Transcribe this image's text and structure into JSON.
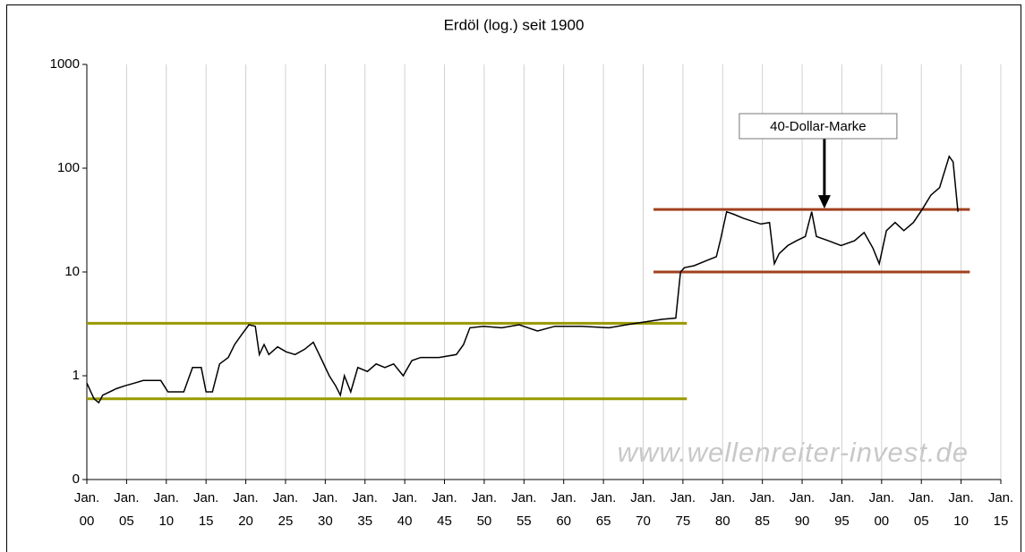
{
  "chart_data": {
    "type": "line",
    "title": "Erdöl (log.) seit 1900",
    "log_y": true,
    "grid": "x",
    "xlim": [
      1900,
      2015
    ],
    "ylim": [
      0.1,
      1000
    ],
    "yticks": [
      {
        "value": 0.1,
        "label": "0"
      },
      1,
      10,
      100,
      1000
    ],
    "xticks": [
      {
        "value": 1900,
        "label": "Jan. 00"
      },
      {
        "value": 1905,
        "label": "Jan. 05"
      },
      {
        "value": 1910,
        "label": "Jan. 10"
      },
      {
        "value": 1915,
        "label": "Jan. 15"
      },
      {
        "value": 1920,
        "label": "Jan. 20"
      },
      {
        "value": 1925,
        "label": "Jan. 25"
      },
      {
        "value": 1930,
        "label": "Jan. 30"
      },
      {
        "value": 1935,
        "label": "Jan. 35"
      },
      {
        "value": 1940,
        "label": "Jan. 40"
      },
      {
        "value": 1945,
        "label": "Jan. 45"
      },
      {
        "value": 1950,
        "label": "Jan. 50"
      },
      {
        "value": 1955,
        "label": "Jan. 55"
      },
      {
        "value": 1960,
        "label": "Jan. 60"
      },
      {
        "value": 1965,
        "label": "Jan. 65"
      },
      {
        "value": 1970,
        "label": "Jan. 70"
      },
      {
        "value": 1975,
        "label": "Jan. 75"
      },
      {
        "value": 1980,
        "label": "Jan. 80"
      },
      {
        "value": 1985,
        "label": "Jan. 85"
      },
      {
        "value": 1990,
        "label": "Jan. 90"
      },
      {
        "value": 1995,
        "label": "Jan. 95"
      },
      {
        "value": 2000,
        "label": "Jan. 00"
      },
      {
        "value": 2005,
        "label": "Jan. 05"
      },
      {
        "value": 2010,
        "label": "Jan. 10"
      },
      {
        "value": 2015,
        "label": "Jan. 15"
      }
    ],
    "series": [
      {
        "color": "#000000",
        "x": [
          1900.0,
          1900.9,
          1901.5,
          1902.0,
          1903.7,
          1904.8,
          1906.0,
          1907.1,
          1909.3,
          1910.2,
          1912.2,
          1913.3,
          1914.4,
          1915.0,
          1915.8,
          1916.7,
          1917.8,
          1918.6,
          1919.5,
          1920.4,
          1921.2,
          1921.7,
          1922.3,
          1922.9,
          1924.0,
          1925.1,
          1926.2,
          1927.4,
          1928.5,
          1929.6,
          1930.5,
          1931.3,
          1931.9,
          1932.4,
          1933.2,
          1934.1,
          1935.3,
          1936.4,
          1937.5,
          1938.6,
          1939.8,
          1940.9,
          1942.0,
          1944.3,
          1946.5,
          1947.4,
          1948.2,
          1949.9,
          1952.2,
          1954.4,
          1956.7,
          1958.9,
          1962.3,
          1965.7,
          1967.9,
          1970.2,
          1972.4,
          1974.1,
          1974.7,
          1975.2,
          1976.4,
          1978.1,
          1979.2,
          1979.7,
          1980.5,
          1981.4,
          1982.6,
          1984.8,
          1985.9,
          1986.5,
          1987.1,
          1988.2,
          1989.3,
          1990.4,
          1991.2,
          1991.8,
          1993.3,
          1994.9,
          1996.6,
          1997.8,
          1998.9,
          1999.7,
          2000.6,
          2001.7,
          2002.8,
          2004.0,
          2005.1,
          2006.2,
          2007.3,
          2008.5,
          2009.0,
          2009.6
        ],
        "values": [
          0.85,
          0.6,
          0.55,
          0.65,
          0.75,
          0.8,
          0.85,
          0.9,
          0.9,
          0.7,
          0.7,
          1.2,
          1.2,
          0.7,
          0.7,
          1.3,
          1.5,
          2.0,
          2.5,
          3.1,
          3.0,
          1.6,
          2.0,
          1.6,
          1.9,
          1.7,
          1.6,
          1.8,
          2.1,
          1.4,
          1.0,
          0.8,
          0.65,
          1.0,
          0.7,
          1.2,
          1.1,
          1.3,
          1.2,
          1.3,
          1.0,
          1.4,
          1.5,
          1.5,
          1.6,
          2.0,
          2.9,
          3.0,
          2.9,
          3.1,
          2.7,
          3.0,
          3.0,
          2.9,
          3.1,
          3.3,
          3.5,
          3.6,
          10,
          11,
          11.5,
          13,
          14,
          20,
          38,
          36,
          33,
          29,
          30,
          12,
          15,
          18,
          20,
          22,
          38,
          22,
          20,
          18,
          20,
          24,
          17,
          12,
          25,
          30,
          25,
          30,
          40,
          55,
          65,
          130,
          115,
          38
        ]
      }
    ],
    "reference_lines": [
      {
        "value": 3.2,
        "x": [
          1900,
          1975.5
        ],
        "color": "#999900"
      },
      {
        "value": 0.6,
        "x": [
          1900,
          1975.5
        ],
        "color": "#999900"
      },
      {
        "value": 40,
        "x": [
          1971.3,
          2011.1
        ],
        "color": "#a0401e"
      },
      {
        "value": 10,
        "x": [
          1971.3,
          2011.1
        ],
        "color": "#a0401e"
      }
    ],
    "annotation": {
      "text": "40-Dollar-Marke",
      "x": 1992.8,
      "y": 40
    },
    "watermark": "www.wellenreiter-invest.de"
  }
}
